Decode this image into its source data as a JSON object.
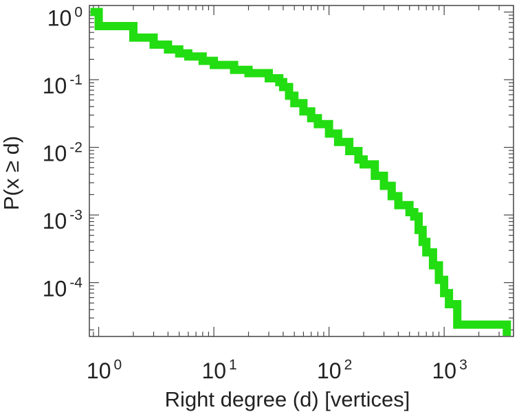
{
  "chart_data": {
    "type": "line",
    "title": "",
    "xlabel": "Right degree (d) [vertices]",
    "ylabel": "P(x ≥ d)",
    "x_scale": "log",
    "y_scale": "log",
    "xlim": [
      0.83,
      4000
    ],
    "ylim": [
      1.6e-05,
      1.25
    ],
    "x_ticks": [
      {
        "value": 1,
        "base": "10",
        "exp": "0"
      },
      {
        "value": 10,
        "base": "10",
        "exp": "1"
      },
      {
        "value": 100,
        "base": "10",
        "exp": "2"
      },
      {
        "value": 1000,
        "base": "10",
        "exp": "3"
      }
    ],
    "y_ticks": [
      {
        "value": 1,
        "base": "10",
        "exp": "0"
      },
      {
        "value": 0.1,
        "base": "10",
        "exp": "-1"
      },
      {
        "value": 0.01,
        "base": "10",
        "exp": "-2"
      },
      {
        "value": 0.001,
        "base": "10",
        "exp": "-3"
      },
      {
        "value": 0.0001,
        "base": "10",
        "exp": "-4"
      }
    ],
    "grid": false,
    "legend": "none",
    "series": [
      {
        "color": "#22dd11",
        "step": true,
        "x": [
          0.85,
          1,
          2,
          3,
          4,
          5,
          6,
          8,
          10,
          15,
          20,
          30,
          37,
          40,
          45,
          50,
          60,
          70,
          80,
          100,
          120,
          150,
          180,
          200,
          250,
          300,
          350,
          400,
          500,
          550,
          600,
          650,
          700,
          800,
          900,
          1000,
          1100,
          1300,
          2000,
          3500
        ],
        "y": [
          1.0,
          0.62,
          0.42,
          0.33,
          0.28,
          0.245,
          0.22,
          0.19,
          0.165,
          0.14,
          0.125,
          0.105,
          0.092,
          0.078,
          0.058,
          0.045,
          0.034,
          0.027,
          0.022,
          0.016,
          0.012,
          0.0088,
          0.0066,
          0.0056,
          0.0038,
          0.0027,
          0.0019,
          0.0014,
          0.0011,
          0.00095,
          0.0006,
          0.0004,
          0.00028,
          0.00018,
          0.00011,
          7e-05,
          4.8e-05,
          2.4e-05,
          2.4e-05,
          2.4e-05
        ]
      }
    ]
  }
}
